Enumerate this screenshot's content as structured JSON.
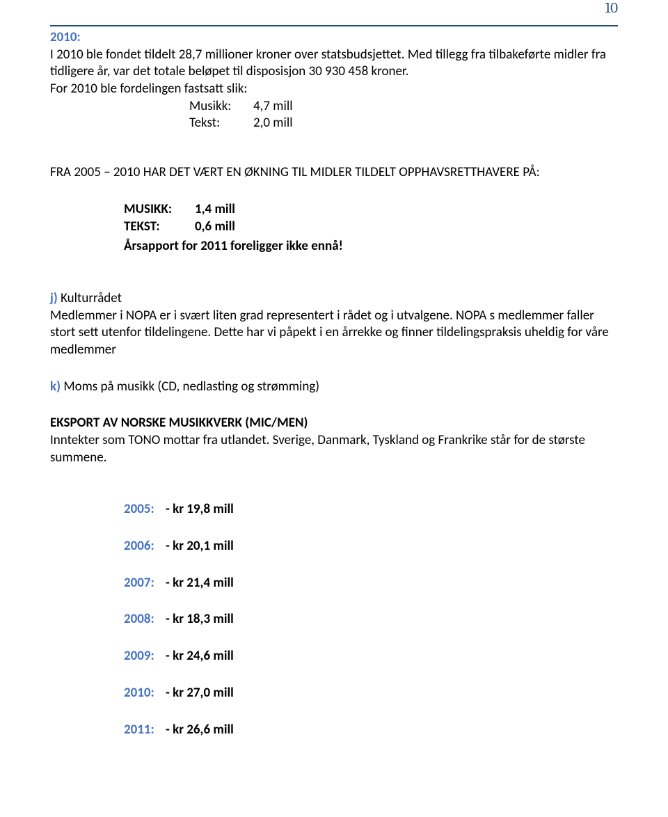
{
  "page_number": "10",
  "section_2010": {
    "heading": "2010:",
    "body": "I 2010 ble fondet tildelt 28,7 millioner kroner over statsbudsjettet. Med tillegg fra tilbakeførte midler fra tidligere år, var det totale beløpet til disposisjon 30 930 458 kroner.",
    "alloc_intro": "For 2010 ble fordelingen fastsatt slik:",
    "rows": [
      {
        "label": "Musikk:",
        "value": "4,7 mill"
      },
      {
        "label": "Tekst:",
        "value": "2,0 mill"
      }
    ]
  },
  "fra_heading": "FRA 2005 – 2010 HAR DET VÆRT EN ØKNING TIL MIDLER TILDELT OPPHAVSRETTHAVERE PÅ:",
  "fra_rows": [
    {
      "label": "MUSIKK:",
      "value": "1,4 mill"
    },
    {
      "label": "TEKST:",
      "value": "0,6 mill"
    }
  ],
  "arsapport": "Årsapport for 2011 foreligger ikke ennå!",
  "j": {
    "heading": "j)",
    "title": " Kulturrådet",
    "body": "Medlemmer i NOPA er i svært liten grad representert i rådet og i utvalgene. NOPA s medlemmer faller stort sett utenfor tildelingene. Dette har vi påpekt i en årrekke og finner tildelingspraksis uheldig for våre medlemmer"
  },
  "k": {
    "heading": "k)",
    "title": " Moms på musikk (CD, nedlasting og strømming)"
  },
  "eksport": {
    "heading": "EKSPORT AV NORSKE MUSIKKVERK (MIC/MEN)",
    "body": "Inntekter som TONO mottar fra utlandet. Sverige, Danmark, Tyskland og Frankrike står for de største summene."
  },
  "year_rows": [
    {
      "year": "2005:",
      "val": " - kr 19,8 mill"
    },
    {
      "year": "2006:",
      "val": " - kr 20,1 mill"
    },
    {
      "year": "2007:",
      "val": " - kr 21,4 mill"
    },
    {
      "year": "2008:",
      "val": " - kr 18,3 mill"
    },
    {
      "year": "2009:",
      "val": " - kr 24,6 mill"
    },
    {
      "year": "2010:",
      "val": " - kr 27,0 mill"
    },
    {
      "year": "2011:",
      "val": " - kr 26,6 mill"
    }
  ],
  "colors": {
    "blue_text": "#4472c4",
    "rule": "#1f4e79",
    "body": "#000000",
    "bg": "#ffffff"
  }
}
